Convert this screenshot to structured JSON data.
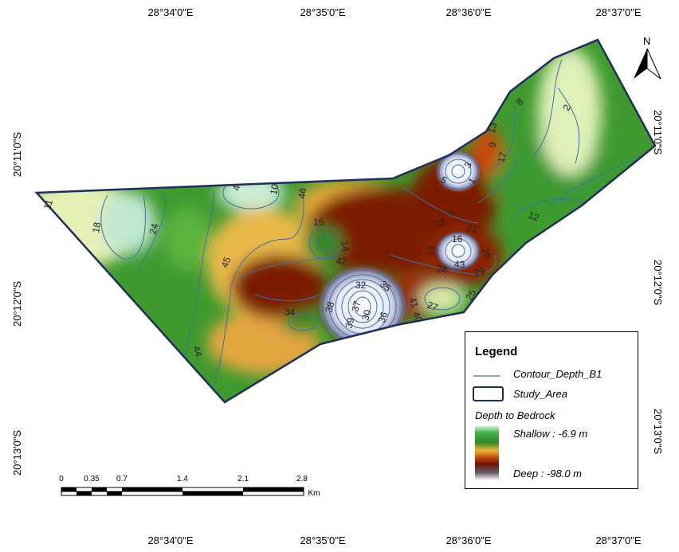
{
  "axes": {
    "longitude_ticks": [
      "28°34'0\"E",
      "28°35'0\"E",
      "28°36'0\"E",
      "28°37'0\"E"
    ],
    "latitude_ticks": [
      "20°11'0\"S",
      "20°12'0\"S",
      "20°13'0\"S"
    ]
  },
  "north_arrow": {
    "label": "N"
  },
  "contour_labels": [
    "11",
    "18",
    "24",
    "45",
    "44",
    "34",
    "42",
    "14",
    "15",
    "46",
    "10",
    "4",
    "38",
    "39",
    "37",
    "30",
    "36",
    "32",
    "35",
    "41",
    "40",
    "27",
    "25",
    "28",
    "29",
    "20",
    "43",
    "16",
    "19",
    "21",
    "22",
    "6",
    "5",
    "3",
    "1",
    "13",
    "9",
    "17",
    "12",
    "8",
    "2"
  ],
  "legend": {
    "title": "Legend",
    "contour_label": "Contour_Depth_B1",
    "study_area_label": "Study_Area",
    "depth_heading": "Depth to Bedrock",
    "shallow_label": "Shallow : -6.9 m",
    "deep_label": "Deep : -98.0 m"
  },
  "scale_bar": {
    "ticks": [
      "0",
      "0.35",
      "0.7",
      "1.4",
      "2.1",
      "2.8"
    ],
    "unit": "Km"
  },
  "colors": {
    "shallow": "#d8f4cc",
    "mid": "#3f9a2e",
    "transition": "#f0b030",
    "deep": "#7a1a00",
    "deepest": "#f4f6ff",
    "boundary": "#1f2d5c",
    "contour": "#3f6fa8"
  }
}
